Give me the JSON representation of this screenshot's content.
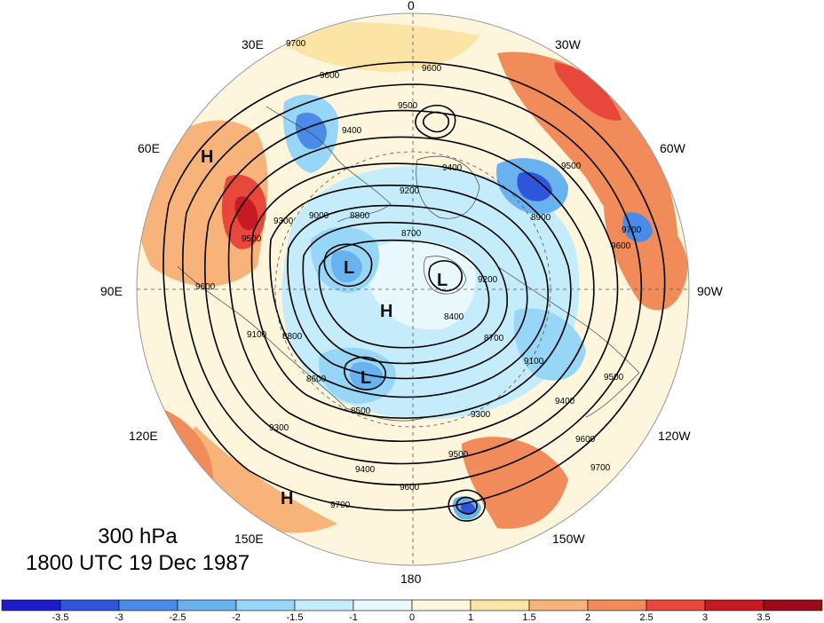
{
  "map": {
    "level_label": "300 hPa",
    "time_label": "1800 UTC 19 Dec 1987",
    "longitude_labels": {
      "top": "0",
      "bottom": "180",
      "left": "90E",
      "right": "90W",
      "upper_left_a": "30E",
      "upper_left_b": "60E",
      "upper_right_a": "30W",
      "upper_right_b": "60W",
      "lower_left_a": "120E",
      "lower_left_b": "150E",
      "lower_right_a": "120W",
      "lower_right_b": "150W"
    },
    "pressure_centers": [
      {
        "label": "H",
        "name": "high-center-60e"
      },
      {
        "label": "L",
        "name": "low-center-north"
      },
      {
        "label": "H",
        "name": "high-center-pole"
      },
      {
        "label": "L",
        "name": "low-center-east"
      },
      {
        "label": "L",
        "name": "low-center-south"
      },
      {
        "label": "H",
        "name": "high-center-150e"
      }
    ],
    "contour_labels": [
      "9700",
      "9600",
      "9600",
      "9500",
      "9400",
      "9400",
      "9500",
      "9200",
      "9300",
      "9500",
      "9000",
      "8800",
      "8700",
      "8900",
      "9600",
      "9700",
      "9600",
      "9100",
      "8800",
      "8600",
      "8500",
      "9200",
      "8400",
      "8700",
      "9100",
      "9300",
      "9400",
      "9500",
      "9600",
      "9700",
      "9300",
      "9500",
      "9400",
      "9600",
      "9700"
    ],
    "colors": {
      "neg_35": "#1c1cce",
      "neg_3": "#2f55dd",
      "neg_25": "#4a8ae8",
      "neg_2": "#69b2f0",
      "neg_15": "#97d6f6",
      "neg_1": "#c4ecfb",
      "zero": "#e9f8fd",
      "pos_05": "#fdf6dc",
      "pos_1": "#fbe4a6",
      "pos_15": "#f8b37a",
      "pos_2": "#f18b5a",
      "pos_25": "#e8473c",
      "pos_3": "#c81a24",
      "pos_35": "#9a0b1a"
    }
  },
  "colorbar": {
    "ticks": [
      "-3.5",
      "-3",
      "-2.5",
      "-2",
      "-1.5",
      "-1",
      "0",
      "1",
      "1.5",
      "2",
      "2.5",
      "3",
      "3.5"
    ],
    "colors": [
      "#1c1cce",
      "#2f55dd",
      "#4a8ae8",
      "#69b2f0",
      "#97d6f6",
      "#c4ecfb",
      "#e9f8fd",
      "#fdf6dc",
      "#fbe4a6",
      "#f8b37a",
      "#f18b5a",
      "#e8473c",
      "#c81a24",
      "#9a0b1a"
    ]
  }
}
